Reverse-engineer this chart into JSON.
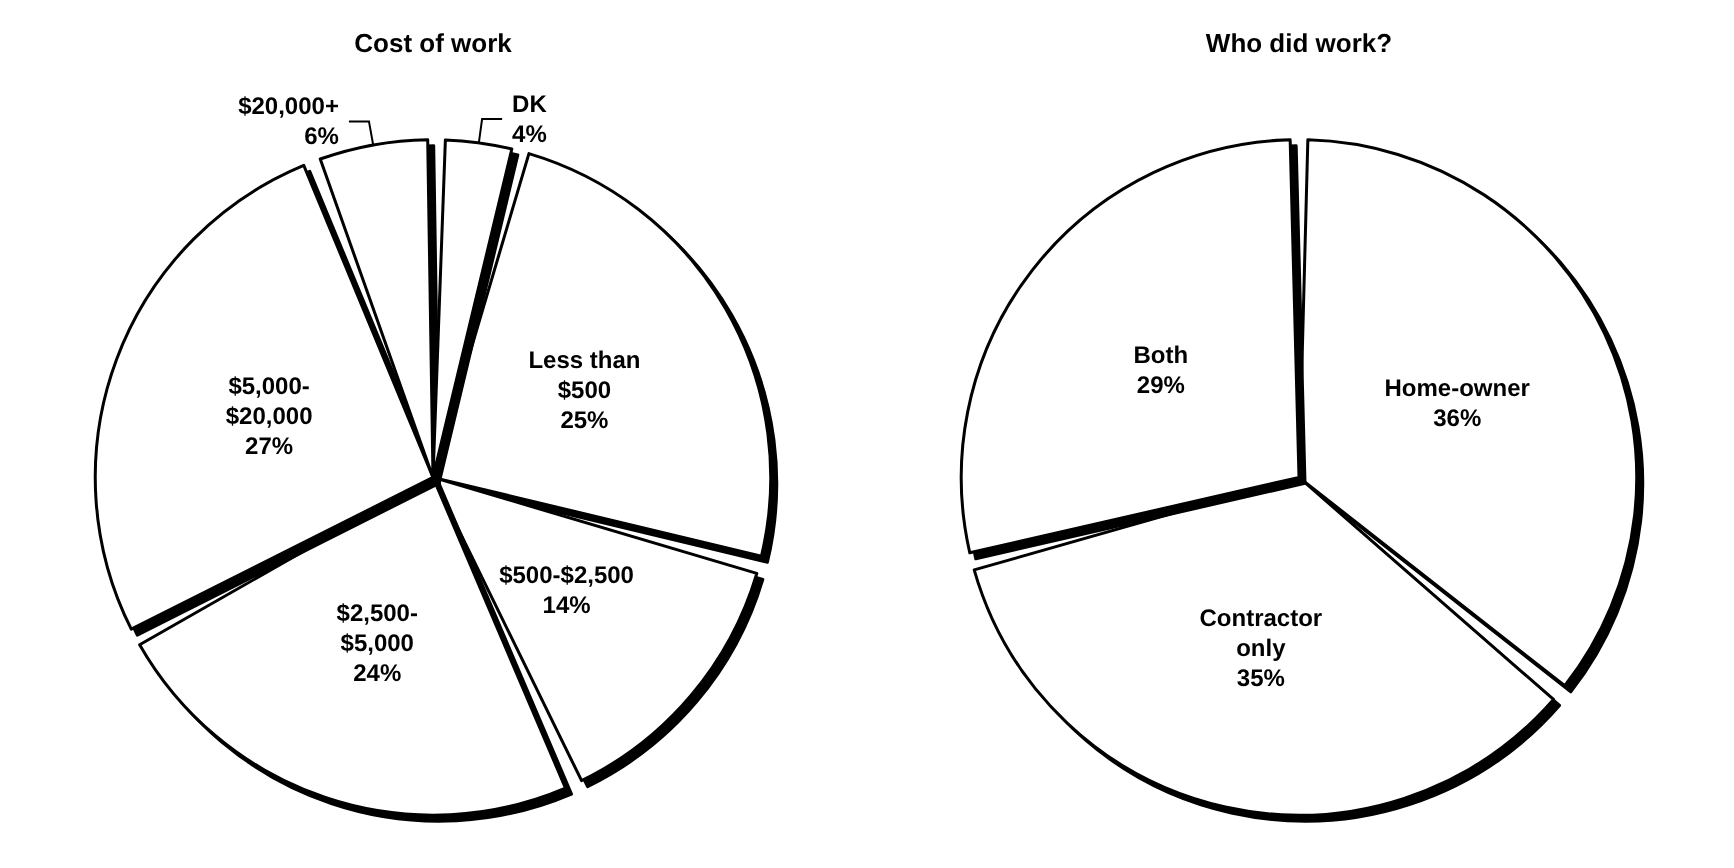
{
  "chart_data": [
    {
      "type": "pie",
      "title": "Cost of work",
      "categories": [
        "Less than $500",
        "$500-$2,500",
        "$2,500-$5,000",
        "$5,000-$20,000",
        "$20,000+",
        "DK"
      ],
      "values": [
        25,
        14,
        24,
        27,
        6,
        4
      ],
      "colors": [
        "#ffffff",
        "#ffffff",
        "#ffffff",
        "#ffffff",
        "#ffffff",
        "#ffffff"
      ],
      "value_labels": [
        "25%",
        "14%",
        "24%",
        "27%",
        "6%",
        "4%"
      ]
    },
    {
      "type": "pie",
      "title": "Who did work?",
      "categories": [
        "Home-owner",
        "Contractor only",
        "Both"
      ],
      "values": [
        36,
        35,
        29
      ],
      "colors": [
        "#ffffff",
        "#ffffff",
        "#ffffff"
      ],
      "value_labels": [
        "36%",
        "35%",
        "29%"
      ]
    }
  ]
}
